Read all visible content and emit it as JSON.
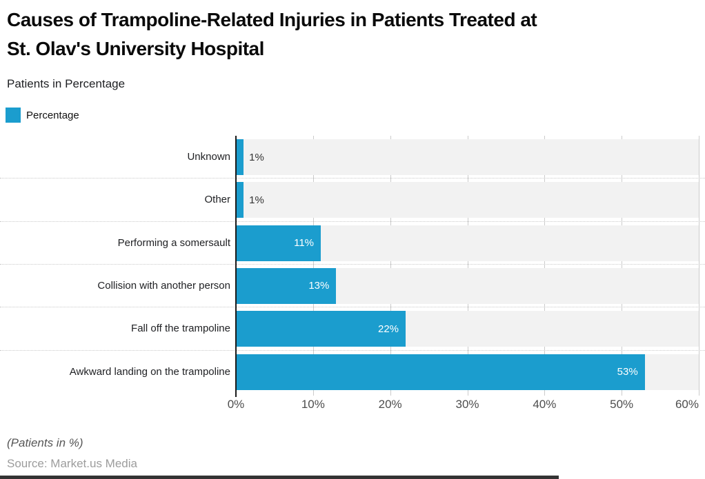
{
  "title": "Causes of Trampoline-Related Injuries in Patients Treated at\nSt. Olav's University Hospital",
  "subtitle": "Patients in Percentage",
  "legend": {
    "label": "Percentage",
    "swatch_color": "#1b9dce"
  },
  "chart_data": {
    "type": "bar",
    "orientation": "horizontal",
    "title": "Causes of Trampoline-Related Injuries in Patients Treated at St. Olav's University Hospital",
    "subtitle": "Patients in Percentage",
    "series_name": "Percentage",
    "categories": [
      "Unknown",
      "Other",
      "Performing a somersault",
      "Collision with another person",
      "Fall off the trampoline",
      "Awkward landing on the trampoline"
    ],
    "values": [
      1,
      1,
      11,
      13,
      22,
      53
    ],
    "value_labels": [
      "1%",
      "1%",
      "11%",
      "13%",
      "22%",
      "53%"
    ],
    "xlabel": "",
    "ylabel": "",
    "xlim": [
      0,
      60
    ],
    "x_tick_values": [
      0,
      10,
      20,
      30,
      40,
      50,
      60
    ],
    "x_tick_labels": [
      "0%",
      "10%",
      "20%",
      "30%",
      "40%",
      "50%",
      "60%"
    ],
    "grid": true,
    "legend_position": "top-left",
    "bar_color": "#1b9dce",
    "track_color": "#f2f2f2",
    "gridline_color": "#cbcbcb",
    "axis_color": "#1a1a1a"
  },
  "footer": {
    "note": "(Patients in %)",
    "source": "Source: Market.us Media"
  }
}
